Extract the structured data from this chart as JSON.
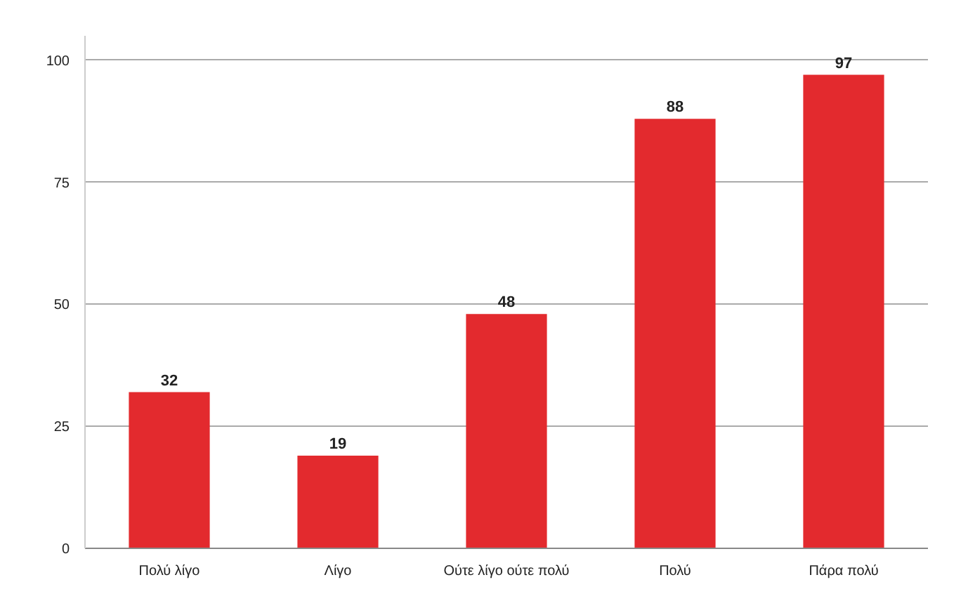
{
  "chart_data": {
    "type": "bar",
    "categories": [
      "Πολύ λίγο",
      "Λίγο",
      "Ούτε λίγο ούτε πολύ",
      "Πολύ",
      "Πάρα πολύ"
    ],
    "values": [
      32,
      19,
      48,
      88,
      97
    ],
    "color": "#e32a2e",
    "ylim": [
      0,
      105
    ],
    "yticks": [
      0,
      25,
      50,
      75,
      100
    ],
    "grid": "y",
    "data_labels": true
  }
}
